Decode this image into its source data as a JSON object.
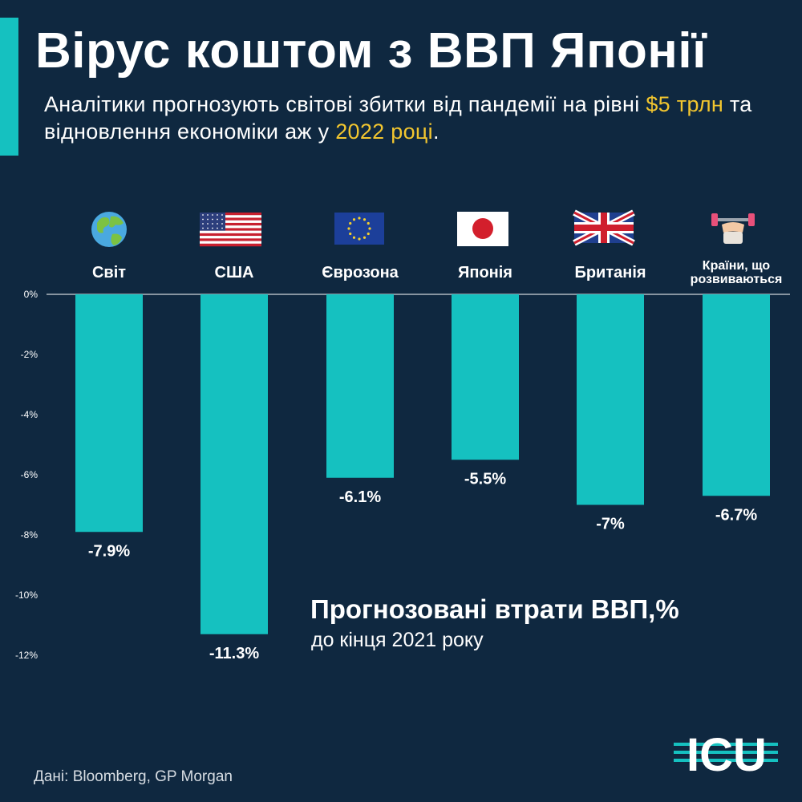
{
  "header": {
    "title": "Вірус коштом з ВВП Японії",
    "subtitle_part1": "Аналітики прогнозують світові збитки від пандемії на рівні ",
    "subtitle_highlight1": "$5 трлн",
    "subtitle_part2": " та відновлення економіки аж у ",
    "subtitle_highlight2": "2022 році",
    "subtitle_part3": "."
  },
  "chart_data": {
    "type": "bar",
    "title": "Прогнозовані втрати ВВП,%",
    "subtitle": "до кінця 2021 року",
    "categories": [
      "Світ",
      "США",
      "Єврозона",
      "Японія",
      "Британія",
      "Країни, що розвиваються"
    ],
    "category_icons": [
      "globe-icon",
      "us-flag-icon",
      "eu-flag-icon",
      "japan-flag-icon",
      "uk-flag-icon",
      "dumbbell-arm-icon"
    ],
    "values": [
      -7.9,
      -11.3,
      -6.1,
      -5.5,
      -7,
      -6.7
    ],
    "value_labels": [
      "-7.9%",
      "-11.3%",
      "-6.1%",
      "-5.5%",
      "-7%",
      "-6.7%"
    ],
    "yticks": [
      "0%",
      "-2%",
      "-4%",
      "-6%",
      "-8%",
      "-10%",
      "-12%"
    ],
    "ylim": [
      -12,
      0
    ]
  },
  "footer": {
    "source": "Дані: Bloomberg, GP Morgan",
    "logo_text": "ICU"
  },
  "colors": {
    "background": "#0f2840",
    "bar": "#15c1c0",
    "highlight": "#f2c62f",
    "text": "#ffffff"
  }
}
